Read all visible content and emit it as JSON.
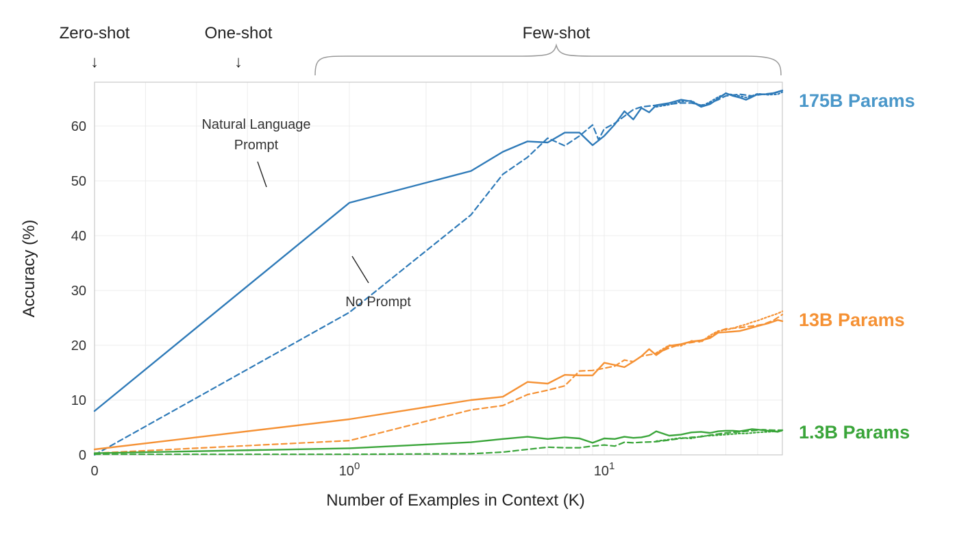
{
  "chart_data": {
    "type": "line",
    "xlabel": "Number of Examples in Context  (K)",
    "ylabel": "Accuracy (%)",
    "xscale": "symlog",
    "xlim": [
      0,
      50
    ],
    "ylim": [
      0,
      68
    ],
    "grid": true,
    "x_ticks": [
      {
        "value": 0,
        "label": "0",
        "exp": ""
      },
      {
        "value": 1,
        "label": "10",
        "exp": "0"
      },
      {
        "value": 10,
        "label": "10",
        "exp": "1"
      }
    ],
    "y_ticks": [
      0,
      10,
      20,
      30,
      40,
      50,
      60
    ],
    "header_labels": {
      "zero_shot": {
        "text": "Zero-shot",
        "arrow": "↓"
      },
      "one_shot": {
        "text": "One-shot",
        "arrow": "↓"
      },
      "few_shot": {
        "text": "Few-shot"
      }
    },
    "annotations": {
      "natural_language_prompt": [
        "Natural Language",
        "Prompt"
      ],
      "no_prompt": "No Prompt"
    },
    "groups": [
      {
        "label": "175B Params",
        "color": "#2e7ab8",
        "label_color": "#4a97c9",
        "series": [
          {
            "style": "solid",
            "points": [
              [
                0,
                8
              ],
              [
                1,
                46
              ],
              [
                3,
                51.8
              ],
              [
                4,
                55.3
              ],
              [
                5,
                57.2
              ],
              [
                6,
                57
              ],
              [
                7,
                58.8
              ],
              [
                8,
                58.8
              ],
              [
                9,
                56.5
              ],
              [
                10,
                58.2
              ],
              [
                11,
                60.3
              ],
              [
                12,
                62.7
              ],
              [
                13,
                61.2
              ],
              [
                14,
                63.3
              ],
              [
                15,
                62.5
              ],
              [
                16,
                63.8
              ],
              [
                18,
                64.2
              ],
              [
                20,
                64.8
              ],
              [
                22,
                64.5
              ],
              [
                24,
                63.5
              ],
              [
                26,
                64
              ],
              [
                28,
                65
              ],
              [
                30,
                66
              ],
              [
                32,
                65.5
              ],
              [
                34,
                65.2
              ],
              [
                36,
                64.8
              ],
              [
                38,
                65.3
              ],
              [
                40,
                65.8
              ],
              [
                44,
                65.8
              ],
              [
                48,
                66.2
              ],
              [
                50,
                66.5
              ]
            ]
          },
          {
            "style": "dashed",
            "points": [
              [
                0,
                0
              ],
              [
                1,
                26
              ],
              [
                3,
                43.8
              ],
              [
                4,
                51.2
              ],
              [
                5,
                54.3
              ],
              [
                6,
                57.8
              ],
              [
                7,
                56.4
              ],
              [
                8,
                58.2
              ],
              [
                9,
                60.2
              ],
              [
                9.5,
                57.5
              ],
              [
                10,
                59.5
              ],
              [
                11,
                60.5
              ],
              [
                12,
                61.8
              ],
              [
                13,
                63
              ],
              [
                14,
                63.5
              ],
              [
                16,
                63.8
              ],
              [
                18,
                64
              ],
              [
                20,
                64.2
              ],
              [
                22,
                64.2
              ],
              [
                24,
                63.8
              ],
              [
                26,
                64.2
              ],
              [
                28,
                64.8
              ],
              [
                30,
                65.5
              ],
              [
                34,
                65.8
              ],
              [
                38,
                65.5
              ],
              [
                42,
                65.8
              ],
              [
                46,
                66
              ],
              [
                50,
                66.5
              ]
            ]
          },
          {
            "style": "dotted",
            "points": [
              [
                16,
                63.5
              ],
              [
                18,
                63.9
              ],
              [
                20,
                64.5
              ],
              [
                22,
                64.6
              ],
              [
                24,
                63.6
              ],
              [
                26,
                64.4
              ],
              [
                28,
                65.3
              ],
              [
                30,
                65.9
              ],
              [
                32,
                65.7
              ],
              [
                34,
                65.5
              ],
              [
                36,
                65.2
              ],
              [
                38,
                65.5
              ],
              [
                40,
                65.9
              ],
              [
                44,
                65.7
              ],
              [
                48,
                65.8
              ],
              [
                50,
                66.2
              ]
            ]
          }
        ]
      },
      {
        "label": "13B Params",
        "color": "#f59134",
        "label_color": "#f59134",
        "series": [
          {
            "style": "solid",
            "points": [
              [
                0,
                1
              ],
              [
                1,
                6.5
              ],
              [
                3,
                10
              ],
              [
                4,
                10.6
              ],
              [
                5,
                13.3
              ],
              [
                6,
                13
              ],
              [
                7,
                14.6
              ],
              [
                8,
                14.5
              ],
              [
                9,
                14.5
              ],
              [
                10,
                16.8
              ],
              [
                11,
                16.4
              ],
              [
                12,
                16
              ],
              [
                13,
                17
              ],
              [
                14,
                18
              ],
              [
                15,
                19.3
              ],
              [
                16,
                18.2
              ],
              [
                18,
                19.9
              ],
              [
                20,
                20.2
              ],
              [
                22,
                20.7
              ],
              [
                24,
                20.9
              ],
              [
                26,
                21.3
              ],
              [
                28,
                22.3
              ],
              [
                30,
                22.4
              ],
              [
                32,
                22.5
              ],
              [
                34,
                22.6
              ],
              [
                36,
                22.9
              ],
              [
                38,
                23.2
              ],
              [
                40,
                23.5
              ],
              [
                44,
                24
              ],
              [
                48,
                24.6
              ],
              [
                50,
                24.4
              ]
            ]
          },
          {
            "style": "dashed",
            "points": [
              [
                0,
                0.3
              ],
              [
                1,
                2.6
              ],
              [
                3,
                8.2
              ],
              [
                4,
                9
              ],
              [
                5,
                11
              ],
              [
                6,
                11.8
              ],
              [
                7,
                12.6
              ],
              [
                8,
                15.3
              ],
              [
                9,
                15.4
              ],
              [
                10,
                15.8
              ],
              [
                11,
                16.2
              ],
              [
                12,
                17.3
              ],
              [
                13,
                17
              ],
              [
                14,
                18
              ],
              [
                16,
                18.5
              ],
              [
                18,
                19.5
              ],
              [
                20,
                20.2
              ],
              [
                22,
                20.5
              ],
              [
                24,
                20.8
              ],
              [
                26,
                21.5
              ],
              [
                28,
                22.5
              ],
              [
                30,
                23
              ],
              [
                34,
                23.2
              ],
              [
                38,
                23.5
              ],
              [
                42,
                23.8
              ],
              [
                46,
                24.5
              ],
              [
                50,
                25.6
              ]
            ]
          },
          {
            "style": "dotted",
            "points": [
              [
                16,
                18.6
              ],
              [
                18,
                20
              ],
              [
                20,
                19.9
              ],
              [
                22,
                20.8
              ],
              [
                24,
                20.6
              ],
              [
                26,
                21.8
              ],
              [
                28,
                22.6
              ],
              [
                30,
                22.8
              ],
              [
                32,
                23.1
              ],
              [
                34,
                23.5
              ],
              [
                36,
                23.8
              ],
              [
                38,
                24.2
              ],
              [
                40,
                24.5
              ],
              [
                44,
                25.2
              ],
              [
                48,
                25.8
              ],
              [
                50,
                26.2
              ]
            ]
          }
        ]
      },
      {
        "label": "1.3B Params",
        "color": "#3aa53a",
        "label_color": "#3aa53a",
        "series": [
          {
            "style": "solid",
            "points": [
              [
                0,
                0.3
              ],
              [
                1,
                1.2
              ],
              [
                3,
                2.3
              ],
              [
                4,
                2.9
              ],
              [
                5,
                3.3
              ],
              [
                6,
                2.9
              ],
              [
                7,
                3.2
              ],
              [
                8,
                3
              ],
              [
                9,
                2.2
              ],
              [
                10,
                3
              ],
              [
                11,
                2.9
              ],
              [
                12,
                3.3
              ],
              [
                13,
                3.1
              ],
              [
                14,
                3.2
              ],
              [
                15,
                3.5
              ],
              [
                16,
                4.3
              ],
              [
                18,
                3.5
              ],
              [
                20,
                3.7
              ],
              [
                22,
                4.1
              ],
              [
                24,
                4.2
              ],
              [
                26,
                4
              ],
              [
                28,
                4.3
              ],
              [
                30,
                4.4
              ],
              [
                32,
                4.4
              ],
              [
                34,
                4.3
              ],
              [
                36,
                4.5
              ],
              [
                38,
                4.7
              ],
              [
                40,
                4.6
              ],
              [
                44,
                4.4
              ],
              [
                48,
                4.2
              ],
              [
                50,
                4.5
              ]
            ]
          },
          {
            "style": "dashed",
            "points": [
              [
                0,
                0.1
              ],
              [
                1,
                0.1
              ],
              [
                3,
                0.2
              ],
              [
                4,
                0.5
              ],
              [
                5,
                1
              ],
              [
                6,
                1.4
              ],
              [
                7,
                1.3
              ],
              [
                8,
                1.3
              ],
              [
                9,
                1.6
              ],
              [
                10,
                1.8
              ],
              [
                11,
                1.6
              ],
              [
                12,
                2.3
              ],
              [
                13,
                2.2
              ],
              [
                14,
                2.3
              ],
              [
                16,
                2.4
              ],
              [
                18,
                2.7
              ],
              [
                20,
                3
              ],
              [
                22,
                3.2
              ],
              [
                24,
                3.3
              ],
              [
                26,
                3.6
              ],
              [
                28,
                3.8
              ],
              [
                30,
                4
              ],
              [
                34,
                4.2
              ],
              [
                38,
                4.4
              ],
              [
                42,
                4.6
              ],
              [
                46,
                4.5
              ],
              [
                50,
                4.5
              ]
            ]
          },
          {
            "style": "dotted",
            "points": [
              [
                16,
                2.5
              ],
              [
                18,
                2.8
              ],
              [
                20,
                3.1
              ],
              [
                22,
                3
              ],
              [
                24,
                3.4
              ],
              [
                26,
                3.5
              ],
              [
                28,
                3.6
              ],
              [
                30,
                3.7
              ],
              [
                32,
                3.8
              ],
              [
                34,
                3.9
              ],
              [
                36,
                3.9
              ],
              [
                38,
                4
              ],
              [
                40,
                4.1
              ],
              [
                44,
                4.2
              ],
              [
                48,
                4.3
              ],
              [
                50,
                4.4
              ]
            ]
          }
        ]
      }
    ]
  }
}
